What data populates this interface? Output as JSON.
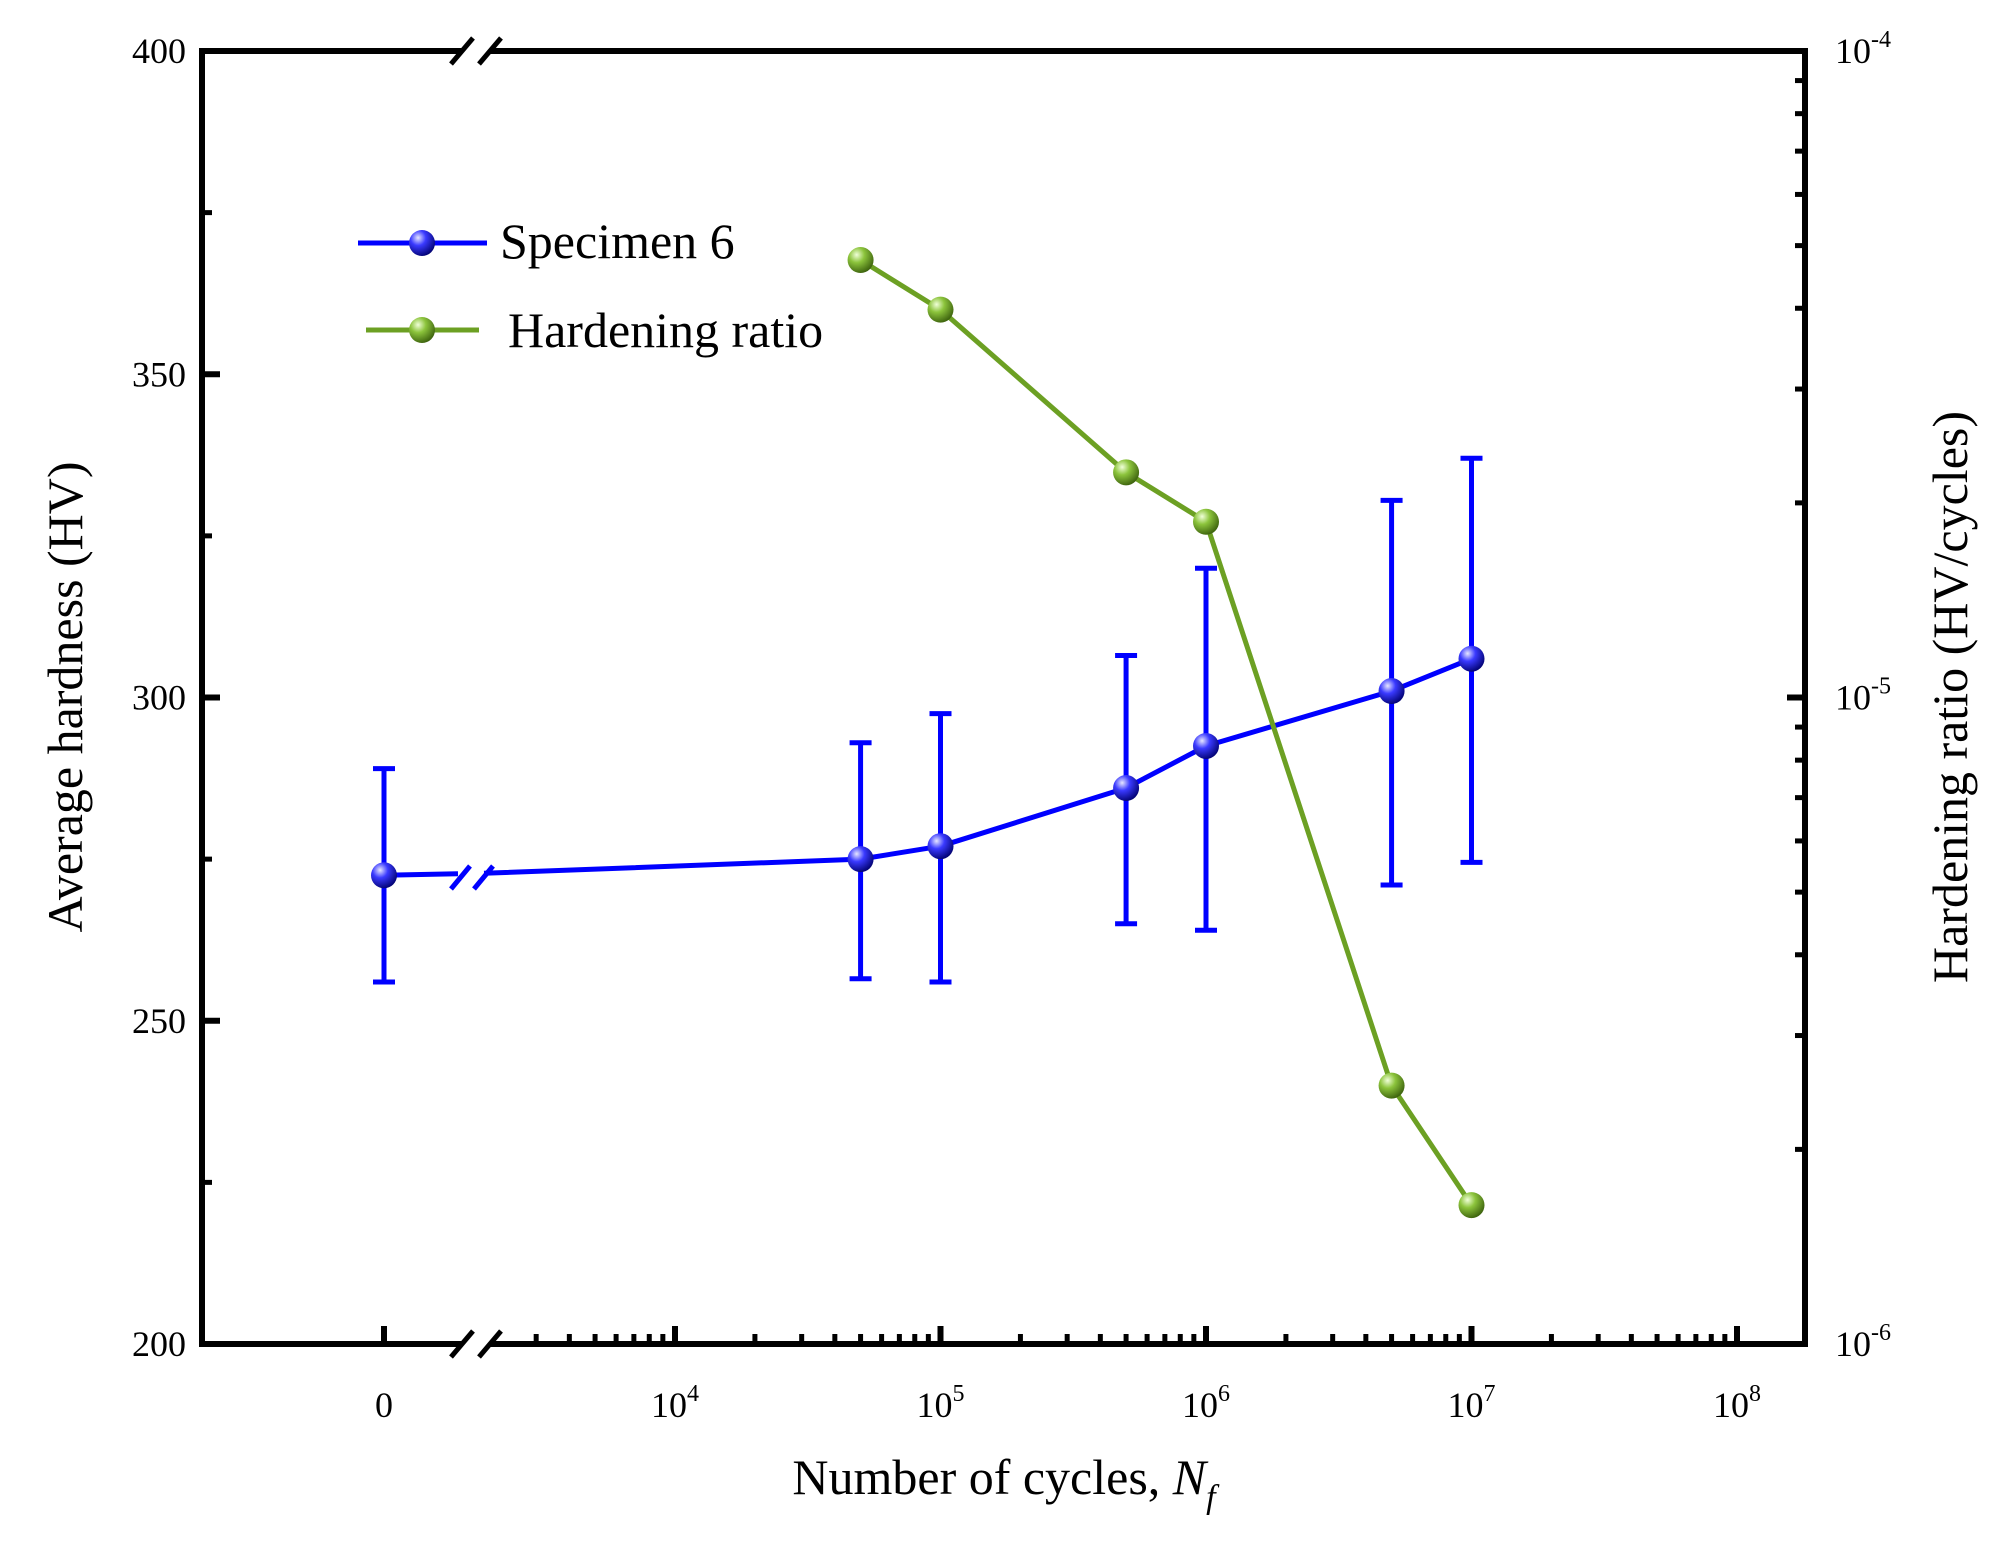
{
  "chart_data": {
    "type": "line",
    "dual_axis": true,
    "xlabel": "Number of cycles, ",
    "xlabel_symbol": "N",
    "xlabel_subscript": "f",
    "xscale": "log with broken axis (0 at origin)",
    "x_tick_labels": [
      {
        "value": 0,
        "base": "0",
        "exp": ""
      },
      {
        "value": 10000,
        "base": "10",
        "exp": "4"
      },
      {
        "value": 100000,
        "base": "10",
        "exp": "5"
      },
      {
        "value": 1000000,
        "base": "10",
        "exp": "6"
      },
      {
        "value": 10000000,
        "base": "10",
        "exp": "7"
      },
      {
        "value": 100000000,
        "base": "10",
        "exp": "8"
      }
    ],
    "xlim_log": [
      1000,
      100000000
    ],
    "ylabel_left": "Average hardness (HV)",
    "ylim_left": [
      200,
      400
    ],
    "yticks_left": [
      200,
      250,
      300,
      350,
      400
    ],
    "ylabel_right": "Hardening ratio (HV/cycles)",
    "yscale_right": "log",
    "ylim_right": [
      1e-06,
      0.0001
    ],
    "yticks_right": [
      {
        "value": 1e-06,
        "base": "10",
        "exp": "-6"
      },
      {
        "value": 1e-05,
        "base": "10",
        "exp": "-5"
      },
      {
        "value": 0.0001,
        "base": "10",
        "exp": "-4"
      }
    ],
    "legend_position": "top-left",
    "series": [
      {
        "name": "Specimen 6",
        "axis": "left",
        "color": "#0000ff",
        "x": [
          0,
          50000,
          100000,
          500000,
          1000000,
          5000000,
          10000000
        ],
        "values": [
          272.5,
          275,
          277,
          286,
          292.5,
          301,
          306
        ],
        "err_high": [
          289,
          293,
          297.5,
          306.5,
          320,
          330.5,
          337
        ],
        "err_low": [
          256,
          256.5,
          256,
          265,
          264,
          271,
          274.5
        ]
      },
      {
        "name": "Hardening ratio",
        "axis": "right",
        "color": "#6ca023",
        "x": [
          50000,
          100000,
          500000,
          1000000,
          5000000,
          10000000
        ],
        "values": [
          4.75e-05,
          3.98e-05,
          2.23e-05,
          1.87e-05,
          2.51e-06,
          1.64e-06
        ]
      }
    ]
  }
}
